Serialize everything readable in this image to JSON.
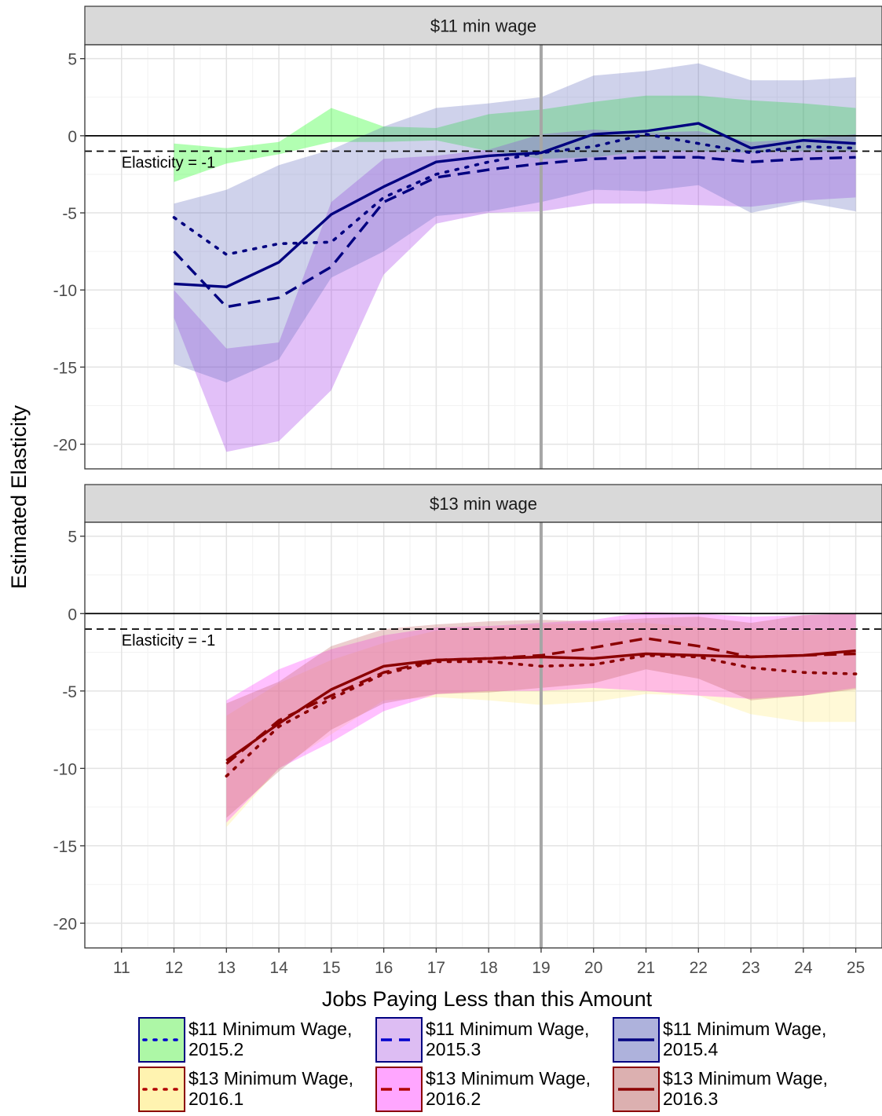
{
  "chart_data": {
    "type": "line",
    "ylabel": "Estimated Elasticity",
    "xlabel": "Jobs Paying Less than this Amount",
    "x_ticks": [
      11,
      12,
      13,
      14,
      15,
      16,
      17,
      18,
      19,
      20,
      21,
      22,
      23,
      24,
      25
    ],
    "y_ticks": [
      5,
      0,
      -5,
      -10,
      -15,
      -20
    ],
    "xlim": [
      10.3,
      25.5
    ],
    "ylim": [
      -21.6,
      5.9
    ],
    "vertical_line_x": 19,
    "reference_lines": [
      {
        "y": 0,
        "style": "solid"
      },
      {
        "y": -1,
        "style": "dashed",
        "label": "Elasticity = -1"
      }
    ],
    "panels": [
      {
        "title": "$11 min wage",
        "series": [
          {
            "name": "$11 Minimum Wage, 2015.2",
            "color": "#000080",
            "fill": "#00ff00",
            "dash": "dotted",
            "x": [
              12,
              13,
              14,
              15,
              16,
              17,
              18,
              19,
              20,
              21,
              22,
              23,
              24,
              25
            ],
            "y": [
              -5.3,
              -7.7,
              -7.0,
              -6.9,
              -4.0,
              -2.5,
              -1.7,
              -1.1,
              -0.7,
              0.1,
              -0.5,
              -1.1,
              -0.7,
              -0.8
            ],
            "lower": [
              -3.0,
              -1.8,
              -1.2,
              -0.4,
              -0.4,
              -0.3,
              -1.0,
              -1.5,
              -1.4,
              -1.0,
              -1.0,
              -1.1,
              -1.0,
              -1.0
            ],
            "upper": [
              -0.5,
              -0.8,
              -0.4,
              1.8,
              0.6,
              0.5,
              1.4,
              1.7,
              2.2,
              2.6,
              2.6,
              2.3,
              2.1,
              1.8
            ]
          },
          {
            "name": "$11 Minimum Wage, 2015.3",
            "color": "#000080",
            "fill": "#a030e8",
            "dash": "dashed",
            "x": [
              12,
              13,
              14,
              15,
              16,
              17,
              18,
              19,
              20,
              21,
              22,
              23,
              24,
              25
            ],
            "y": [
              -7.5,
              -11.1,
              -10.5,
              -8.5,
              -4.3,
              -2.7,
              -2.2,
              -1.8,
              -1.5,
              -1.4,
              -1.4,
              -1.7,
              -1.5,
              -1.4
            ],
            "lower": [
              -11.8,
              -20.5,
              -19.8,
              -16.5,
              -9.0,
              -5.7,
              -5.0,
              -4.9,
              -4.4,
              -4.4,
              -4.5,
              -4.6,
              -4.2,
              -4.0
            ],
            "upper": [
              -10.0,
              -13.8,
              -13.4,
              -4.3,
              -1.5,
              -1.3,
              -0.9,
              0.1,
              0.4,
              0.2,
              0.3,
              -0.4,
              -0.2,
              0.1
            ]
          },
          {
            "name": "$11 Minimum Wage, 2015.4",
            "color": "#000080",
            "fill": "#606bbd",
            "dash": "solid",
            "x": [
              12,
              13,
              14,
              15,
              16,
              17,
              18,
              19,
              20,
              21,
              22,
              23,
              24,
              25
            ],
            "y": [
              -9.6,
              -9.8,
              -8.2,
              -5.1,
              -3.3,
              -1.7,
              -1.3,
              -1.1,
              0.1,
              0.3,
              0.8,
              -0.8,
              -0.3,
              -0.5
            ],
            "lower": [
              -14.8,
              -16.0,
              -14.5,
              -9.2,
              -7.5,
              -5.2,
              -4.9,
              -4.3,
              -3.5,
              -3.6,
              -3.2,
              -5.0,
              -4.3,
              -4.9
            ],
            "upper": [
              -4.4,
              -3.5,
              -1.9,
              -0.9,
              0.6,
              1.8,
              2.1,
              2.5,
              3.9,
              4.2,
              4.7,
              3.6,
              3.6,
              3.8
            ]
          }
        ]
      },
      {
        "title": "$13 min wage",
        "series": [
          {
            "name": "$13 Minimum Wage, 2016.1",
            "color": "#8b0000",
            "fill": "#ffea7a",
            "dash": "dotted",
            "x": [
              13,
              14,
              15,
              16,
              17,
              18,
              19,
              20,
              21,
              22,
              23,
              24,
              25
            ],
            "y": [
              -10.5,
              -7.3,
              -5.5,
              -3.9,
              -3.1,
              -3.1,
              -3.4,
              -3.3,
              -2.7,
              -2.8,
              -3.5,
              -3.8,
              -3.9
            ],
            "lower": [
              -13.8,
              -10.0,
              -7.8,
              -5.6,
              -5.4,
              -5.6,
              -5.9,
              -5.7,
              -5.2,
              -5.3,
              -6.5,
              -7.0,
              -7.0
            ],
            "upper": [
              -6.6,
              -4.5,
              -3.0,
              -1.9,
              -1.1,
              -0.9,
              -0.7,
              -0.6,
              -0.6,
              -0.9,
              -1.0,
              -1.1,
              -1.0
            ]
          },
          {
            "name": "$13 Minimum Wage, 2016.2",
            "color": "#8b0000",
            "fill": "#ff30ff",
            "dash": "dashed",
            "x": [
              13,
              14,
              15,
              16,
              17,
              18,
              19,
              20,
              21,
              22,
              23,
              24,
              25
            ],
            "y": [
              -9.7,
              -6.9,
              -5.3,
              -3.8,
              -3.0,
              -2.9,
              -2.7,
              -2.2,
              -1.6,
              -2.1,
              -2.8,
              -2.7,
              -2.6
            ],
            "lower": [
              -13.5,
              -10.0,
              -8.3,
              -6.3,
              -5.2,
              -5.0,
              -5.0,
              -4.8,
              -5.0,
              -5.3,
              -5.5,
              -5.3,
              -4.8
            ],
            "upper": [
              -5.6,
              -3.6,
              -2.3,
              -1.4,
              -0.9,
              -0.8,
              -0.6,
              -0.4,
              0.1,
              0.0,
              -0.2,
              -0.1,
              0.0
            ]
          },
          {
            "name": "$13 Minimum Wage, 2016.3",
            "color": "#8b0000",
            "fill": "#c06060",
            "dash": "solid",
            "x": [
              13,
              14,
              15,
              16,
              17,
              18,
              19,
              20,
              21,
              22,
              23,
              24,
              25
            ],
            "y": [
              -9.5,
              -7.1,
              -4.9,
              -3.4,
              -3.0,
              -2.9,
              -2.8,
              -2.9,
              -2.6,
              -2.7,
              -2.8,
              -2.7,
              -2.4
            ],
            "lower": [
              -13.2,
              -10.2,
              -7.5,
              -5.8,
              -5.2,
              -5.1,
              -4.8,
              -4.5,
              -3.6,
              -4.2,
              -5.6,
              -5.3,
              -4.9
            ],
            "upper": [
              -5.8,
              -4.4,
              -2.1,
              -1.0,
              -0.7,
              -0.5,
              -0.4,
              -0.5,
              -0.3,
              -0.2,
              -0.6,
              -0.1,
              0.0
            ]
          }
        ]
      }
    ],
    "legend": {
      "placement": "bottom",
      "entries": [
        {
          "label": [
            "$11 Minimum Wage,",
            "2015.2"
          ],
          "fill": "#adf7a6",
          "border": "#000080",
          "line": "#0000cc",
          "dash": "dotted"
        },
        {
          "label": [
            "$11 Minimum Wage,",
            "2015.3"
          ],
          "fill": "#ddbdf3",
          "border": "#000080",
          "line": "#0000cc",
          "dash": "dashed"
        },
        {
          "label": [
            "$11 Minimum Wage,",
            "2015.4"
          ],
          "fill": "#aeb2dc",
          "border": "#000080",
          "line": "#000080",
          "dash": "solid"
        },
        {
          "label": [
            "$13 Minimum Wage,",
            "2016.1"
          ],
          "fill": "#fff3b0",
          "border": "#8b0000",
          "line": "#b00000",
          "dash": "dotted"
        },
        {
          "label": [
            "$13 Minimum Wage,",
            "2016.2"
          ],
          "fill": "#ffa6ff",
          "border": "#8b0000",
          "line": "#b00000",
          "dash": "dashed"
        },
        {
          "label": [
            "$13 Minimum Wage,",
            "2016.3"
          ],
          "fill": "#dcb0b0",
          "border": "#8b0000",
          "line": "#8b0000",
          "dash": "solid"
        }
      ]
    }
  }
}
